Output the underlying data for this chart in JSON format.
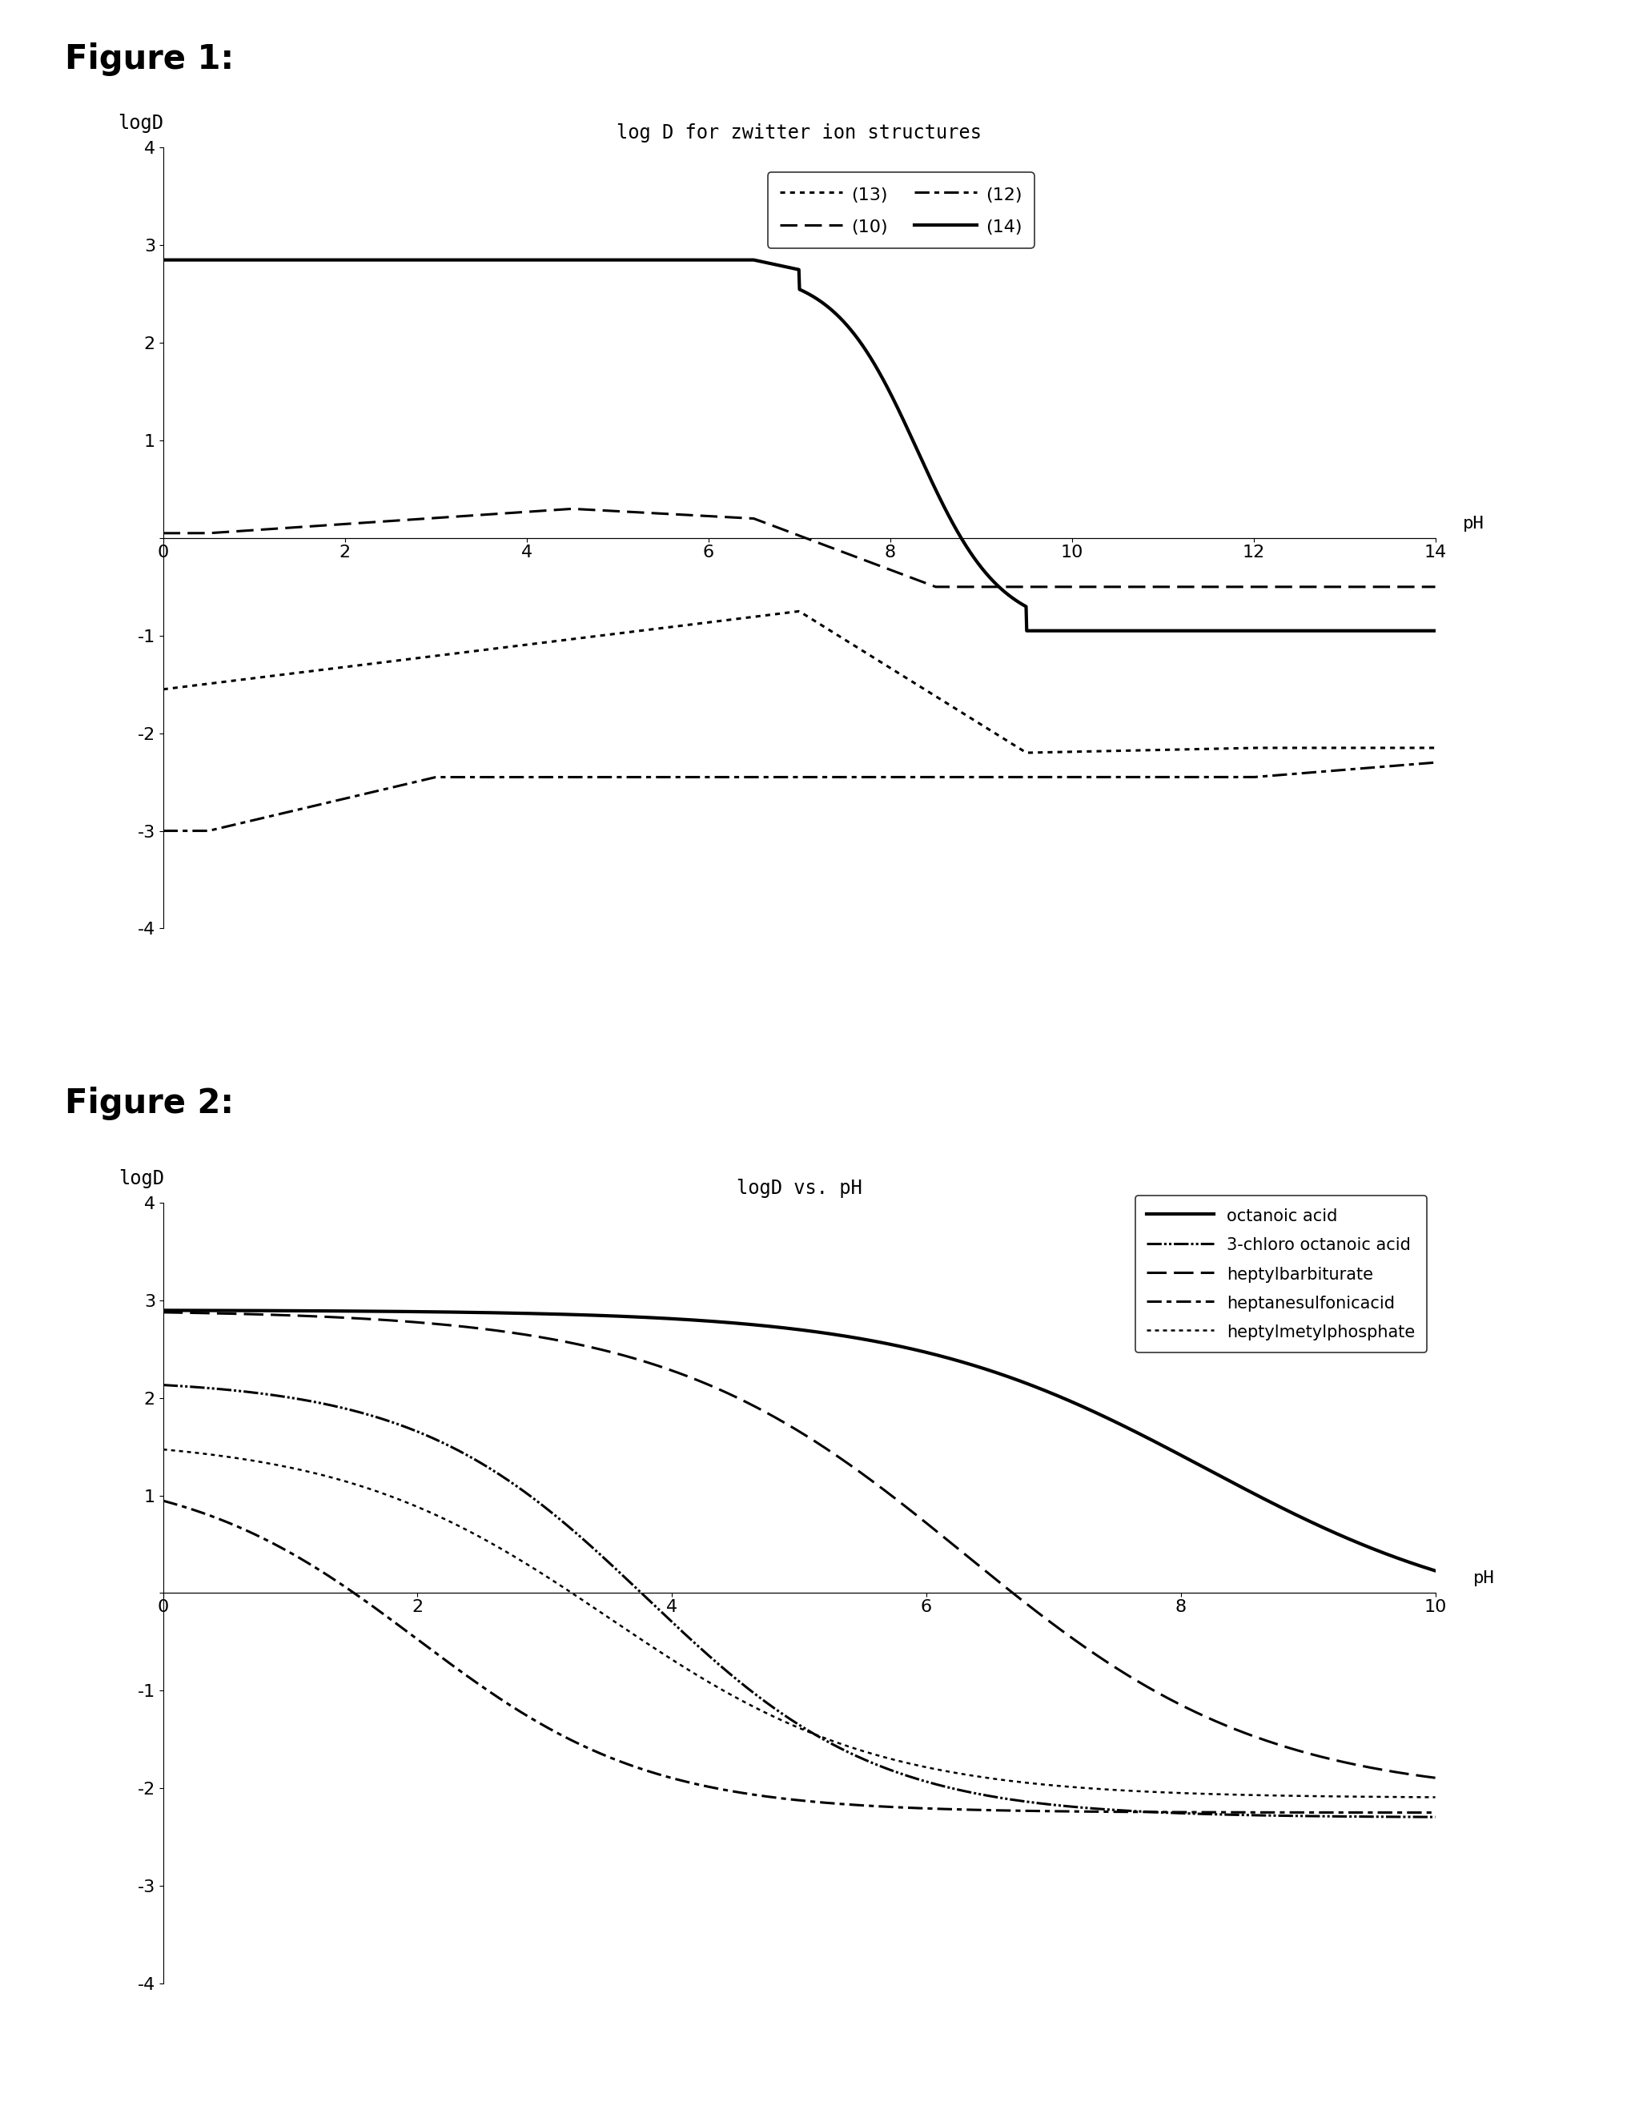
{
  "fig1_title": "log D for zwitter ion structures",
  "fig1_ylabel": "logD",
  "fig1_xlabel": "pH",
  "fig1_xlim": [
    0,
    14
  ],
  "fig1_ylim": [
    -4,
    4
  ],
  "fig1_xticks": [
    0,
    2,
    4,
    6,
    8,
    10,
    12,
    14
  ],
  "fig1_yticks": [
    -4,
    -3,
    -2,
    -1,
    0,
    1,
    2,
    3,
    4
  ],
  "fig2_title": "logD vs. pH",
  "fig2_ylabel": "logD",
  "fig2_xlabel": "pH",
  "fig2_xlim": [
    0,
    10
  ],
  "fig2_ylim": [
    -4,
    4
  ],
  "fig2_xticks": [
    0,
    2,
    4,
    6,
    8,
    10
  ],
  "fig2_yticks": [
    -4,
    -3,
    -2,
    -1,
    0,
    1,
    2,
    3,
    4
  ],
  "figure1_label": "Figure 1:",
  "figure2_label": "Figure 2:",
  "background_color": "#ffffff",
  "fig1_leg13_label": "(13)",
  "fig1_leg10_label": "(10)",
  "fig1_leg12_label": "(12)",
  "fig1_leg14_label": "(14)",
  "fig2_leg1": "octanoic acid",
  "fig2_leg2": "3-chloro octanoic acid",
  "fig2_leg3": "heptylbarbiturate",
  "fig2_leg4": "heptanesulfonicacid",
  "fig2_leg5": "heptylmetylphosphate"
}
